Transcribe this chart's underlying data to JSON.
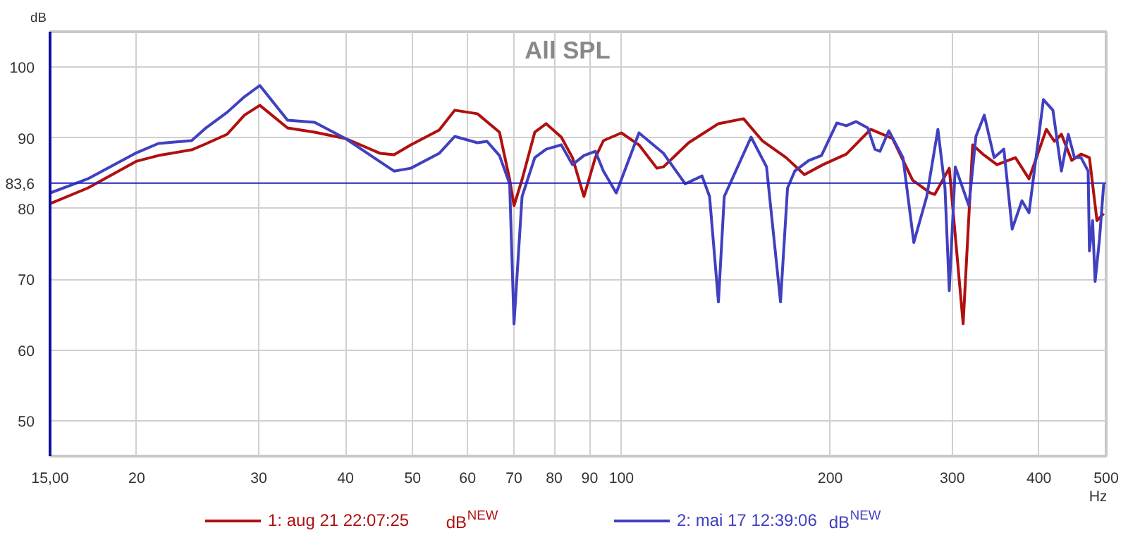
{
  "chart_data": {
    "type": "line",
    "title": "All SPL",
    "xlabel": "Hz",
    "ylabel": "dB",
    "log": "x",
    "xlim": [
      15,
      500
    ],
    "ylim": [
      45,
      105
    ],
    "xticks": [
      {
        "value": 15,
        "label": "15,00"
      },
      20,
      30,
      40,
      50,
      60,
      70,
      80,
      90,
      100,
      200,
      300,
      400,
      500
    ],
    "yticks": [
      50,
      60,
      70,
      80,
      90,
      100
    ],
    "grid": true,
    "legend": "bottom",
    "line_style": "solid",
    "ref_lines": [
      {
        "axis": "y",
        "value": 83.6,
        "label": "83,6",
        "color": "#2020c0"
      }
    ],
    "annotations": [
      "dB$^{NEW}$",
      "dB$^{NEW}$"
    ],
    "series": [
      {
        "name": "1: aug 21 22:07:25",
        "color": "#b01010",
        "x": [
          15,
          17,
          20,
          21.5,
          24,
          25.1,
          27,
          28.6,
          30.1,
          33,
          36.1,
          40,
          44.9,
          47,
          49.7,
          54.6,
          57.5,
          62,
          66.7,
          69,
          70,
          71.9,
          75,
          77.9,
          81.9,
          85,
          88.3,
          91.7,
          94.2,
          100,
          106,
          112.5,
          115,
          125,
          138,
          150,
          159.6,
          172.8,
          183.6,
          195.2,
          211,
          228.8,
          246,
          263,
          279,
          283,
          297,
          311,
          321,
          332,
          348,
          370,
          387,
          410,
          421,
          431,
          446,
          460,
          473,
          485,
          496
        ],
        "values": [
          80.7,
          82.9,
          86.7,
          87.5,
          88.3,
          89.1,
          90.5,
          93.2,
          94.6,
          91.4,
          90.8,
          89.9,
          87.8,
          87.6,
          89,
          91.1,
          93.9,
          93.4,
          90.8,
          84.1,
          80.4,
          84.1,
          90.8,
          92,
          90.1,
          87.2,
          81.7,
          87.2,
          89.6,
          90.7,
          89,
          85.7,
          85.9,
          89.3,
          92,
          92.7,
          89.6,
          87.2,
          84.8,
          86.2,
          87.7,
          91.2,
          89.9,
          84,
          82.2,
          82,
          85.7,
          63.7,
          89,
          87.7,
          86.2,
          87.2,
          84.2,
          91.2,
          89.5,
          90.5,
          86.8,
          87.7,
          87.2,
          78.3,
          79.3
        ]
      },
      {
        "name": "2: mai 17 12:39:06",
        "color": "#4040c0",
        "x": [
          15,
          17,
          20,
          21.5,
          24,
          25.1,
          27,
          28.6,
          30.1,
          33,
          36.1,
          40,
          44.9,
          47,
          49.7,
          54.6,
          57.5,
          62,
          64,
          66.7,
          69,
          70,
          71.9,
          75,
          77.9,
          81.9,
          85,
          88.3,
          91.7,
          94.2,
          98.3,
          106,
          115,
          123.6,
          130.7,
          134,
          138,
          140.7,
          153.8,
          161.9,
          169.6,
          173.6,
          177.8,
          186.3,
          194.3,
          204.5,
          211,
          218,
          226.6,
          232,
          236,
          243,
          254.7,
          264,
          275.6,
          286,
          292.8,
          297,
          303,
          317,
          324.5,
          333.6,
          344.7,
          356,
          366,
          378,
          387,
          406,
          419,
          431,
          441,
          450,
          460,
          471,
          473,
          478,
          482,
          489,
          496
        ],
        "values": [
          82.2,
          84.2,
          87.9,
          89.2,
          89.6,
          91.3,
          93.6,
          95.8,
          97.4,
          92.5,
          92.2,
          89.9,
          86.6,
          85.3,
          85.7,
          87.8,
          90.2,
          89.3,
          89.5,
          87.5,
          83.5,
          63.7,
          81.7,
          87.2,
          88.4,
          89,
          86.2,
          87.5,
          88.1,
          85.3,
          82.2,
          90.7,
          87.8,
          83.5,
          84.6,
          81.7,
          66.8,
          81.7,
          90.1,
          85.9,
          66.8,
          82.9,
          85.3,
          86.8,
          87.5,
          92.1,
          91.7,
          92.3,
          91.4,
          88.4,
          88.1,
          91,
          87.2,
          75.2,
          81.7,
          91.2,
          82.9,
          68.4,
          85.9,
          80.4,
          90.2,
          93.2,
          87.2,
          88.4,
          77.1,
          81.1,
          79.4,
          95.4,
          93.9,
          85.3,
          90.5,
          87.2,
          87.2,
          85.3,
          74,
          78.3,
          69.7,
          75.6,
          83.5
        ]
      }
    ]
  }
}
